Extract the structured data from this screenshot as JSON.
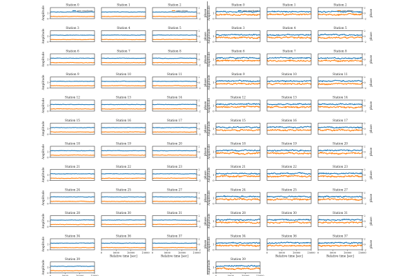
{
  "figure": {
    "background": "#ffffff",
    "colors": {
      "amplitude": "#1f77b4",
      "phase": "#ff7f0e",
      "frame": "#333333"
    },
    "ylabel_left": "Amplitude",
    "ylabel_right": "phase",
    "xlabel": "Relative time [sec]",
    "legend": {
      "amplitude": "gain amplitude",
      "phase": "gain phase"
    }
  },
  "chart_data": [
    {
      "type": "line",
      "panel": "left",
      "title": "",
      "xlabel": "Relative time [sec]",
      "ylabel": "Amplitude",
      "y2label": "phase",
      "xlim": [
        0,
        15000
      ],
      "xticks": [
        "0",
        "5000",
        "10000",
        "15000"
      ],
      "ylim": [
        0,
        2
      ],
      "yticks": [
        "0",
        "1"
      ],
      "y2lim": [
        -2,
        2
      ],
      "y2ticks": [
        "-2",
        "0",
        "2"
      ],
      "grid": false,
      "legend_placement": "inside-top-right",
      "series": [
        {
          "name": "gain amplitude",
          "color": "#1f77b4",
          "typical_value": 1.2,
          "jitter": 0.06
        },
        {
          "name": "gain phase",
          "color": "#ff7f0e",
          "typical_value": 0.4,
          "jitter": 0.06
        }
      ],
      "stations": [
        "Station 0",
        "Station 1",
        "Station 2",
        "Station 3",
        "Station 4",
        "Station 5",
        "Station 6",
        "Station 7",
        "Station 8",
        "Station 9",
        "Station 10",
        "Station 11",
        "Station 12",
        "Station 13",
        "Station 14",
        "Station 15",
        "Station 16",
        "Station 17",
        "Station 18",
        "Station 19",
        "Station 20",
        "Station 21",
        "Station 22",
        "Station 23",
        "Station 24",
        "Station 25",
        "Station 27",
        "Station 28",
        "Station 30",
        "Station 31",
        "Station 34",
        "Station 36",
        "Station 37",
        "Station 39"
      ]
    },
    {
      "type": "line",
      "panel": "right",
      "title": "",
      "xlabel": "Relative time [sec]",
      "ylabel": "Amplitude",
      "y2label": "phase",
      "xlim": [
        0,
        15000
      ],
      "xticks": [
        "0",
        "5000",
        "10000",
        "15000"
      ],
      "ylim": [
        0,
        2
      ],
      "yticks": [
        "0",
        "1"
      ],
      "y2lim": [
        -2,
        2
      ],
      "y2ticks": [
        "-2",
        "0",
        "2"
      ],
      "grid": false,
      "legend_placement": "inside-top-right",
      "series": [
        {
          "name": "gain amplitude",
          "color": "#1f77b4",
          "typical_value": 1.25,
          "jitter": 0.16
        },
        {
          "name": "gain phase",
          "color": "#ff7f0e",
          "typical_value": 0.75,
          "jitter": 0.2
        }
      ],
      "stations": [
        "Station 0",
        "Station 1",
        "Station 2",
        "Station 3",
        "Station 4",
        "Station 5",
        "Station 6",
        "Station 7",
        "Station 8",
        "Station 9",
        "Station 10",
        "Station 11",
        "Station 12",
        "Station 13",
        "Station 14",
        "Station 15",
        "Station 16",
        "Station 17",
        "Station 18",
        "Station 19",
        "Station 20",
        "Station 21",
        "Station 22",
        "Station 23",
        "Station 24",
        "Station 25",
        "Station 27",
        "Station 28",
        "Station 30",
        "Station 31",
        "Station 34",
        "Station 36",
        "Station 37",
        "Station 39"
      ]
    }
  ]
}
